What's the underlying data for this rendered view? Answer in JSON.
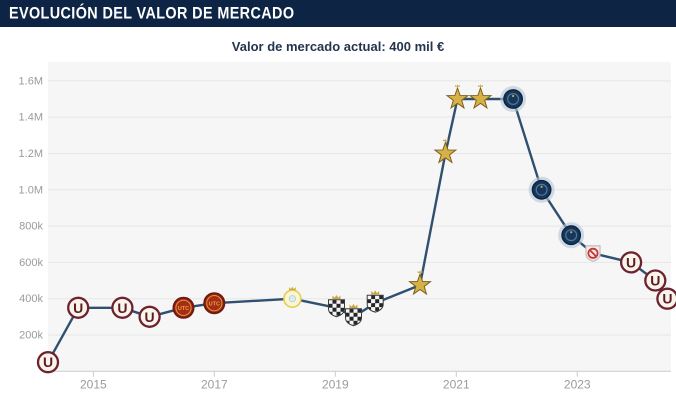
{
  "header": {
    "title": "EVOLUCIÓN DEL VALOR DE MERCADO"
  },
  "subtitle": "Valor de mercado actual: 400 mil €",
  "colors": {
    "header_bg": "#0d2444",
    "subtitle_text": "#25344f",
    "plot_bg": "#f6f6f6",
    "grid": "#e7e7e7",
    "axis_line": "#cccccc",
    "axis_label": "#9b9b9b",
    "line": "#30506f"
  },
  "club_icons": {
    "universitario": {
      "label": "U",
      "bg": "#faf5ea",
      "ring": "#6d2230",
      "letter_color": "#5d1b26"
    },
    "utc": {
      "label": "UTC",
      "bg": "#a62c17",
      "ring": "#701812",
      "emblem": "#e2a63c"
    },
    "yellow-crest": {
      "bg": "#fbf6cf",
      "ring": "#e3cf55",
      "crown": "#cfa93a",
      "center": "#dcebf2"
    },
    "checkered-crest": {
      "dark": "#26262a",
      "light": "#f4f4f4",
      "edge": "#3c3c3c",
      "crown": "#c9a43a"
    },
    "gold-star": {
      "fill": "#d6b246",
      "edge": "#7c5f1d",
      "crown": "#caa43a"
    },
    "navy-round": {
      "bg": "#16375c",
      "edge": "#0c2340",
      "halo": "#b7c7d9",
      "inner": "#567596",
      "dot": "#caa94a"
    },
    "no-club": {
      "bg": "#f4eded",
      "edge": "#c9bfbf",
      "sign": "#c63636",
      "sign_bg": "#fce8e8"
    }
  },
  "chart_data": {
    "type": "line",
    "title": "Valor de mercado actual: 400 mil €",
    "xlabel": "",
    "ylabel": "",
    "grid": true,
    "legend": false,
    "xlim": [
      2014.25,
      2024.55
    ],
    "ylim_thousand_eur": [
      0,
      1704
    ],
    "xticks": {
      "values": [
        2015,
        2017,
        2019,
        2021,
        2023
      ],
      "labels": [
        "2015",
        "2017",
        "2019",
        "2021",
        "2023"
      ]
    },
    "yticks": {
      "values_thousand_eur": [
        200,
        400,
        600,
        800,
        1000,
        1200,
        1400,
        1600
      ],
      "labels": [
        "200k",
        "400k",
        "600k",
        "800k",
        "1.0M",
        "1.2M",
        "1.4M",
        "1.6M"
      ]
    },
    "points": [
      {
        "year": 2014.25,
        "value_k": 50,
        "club_icon": "universitario"
      },
      {
        "year": 2014.75,
        "value_k": 350,
        "club_icon": "universitario"
      },
      {
        "year": 2015.48,
        "value_k": 350,
        "club_icon": "universitario"
      },
      {
        "year": 2015.93,
        "value_k": 300,
        "club_icon": "universitario"
      },
      {
        "year": 2016.49,
        "value_k": 350,
        "club_icon": "utc"
      },
      {
        "year": 2017.0,
        "value_k": 375,
        "club_icon": "utc"
      },
      {
        "year": 2018.29,
        "value_k": 400,
        "club_icon": "yellow-crest"
      },
      {
        "year": 2019.02,
        "value_k": 350,
        "club_icon": "checkered-crest"
      },
      {
        "year": 2019.3,
        "value_k": 300,
        "club_icon": "checkered-crest"
      },
      {
        "year": 2019.66,
        "value_k": 375,
        "club_icon": "checkered-crest"
      },
      {
        "year": 2020.4,
        "value_k": 475,
        "club_icon": "gold-star"
      },
      {
        "year": 2020.82,
        "value_k": 1200,
        "club_icon": "gold-star"
      },
      {
        "year": 2021.02,
        "value_k": 1500,
        "club_icon": "gold-star"
      },
      {
        "year": 2021.4,
        "value_k": 1500,
        "club_icon": "gold-star"
      },
      {
        "year": 2021.94,
        "value_k": 1500,
        "club_icon": "navy-round"
      },
      {
        "year": 2022.41,
        "value_k": 1000,
        "club_icon": "navy-round"
      },
      {
        "year": 2022.9,
        "value_k": 750,
        "club_icon": "navy-round"
      },
      {
        "year": 2023.26,
        "value_k": 650,
        "club_icon": "no-club"
      },
      {
        "year": 2023.89,
        "value_k": 600,
        "club_icon": "universitario"
      },
      {
        "year": 2024.29,
        "value_k": 500,
        "club_icon": "universitario"
      },
      {
        "year": 2024.49,
        "value_k": 400,
        "club_icon": "universitario"
      }
    ]
  }
}
